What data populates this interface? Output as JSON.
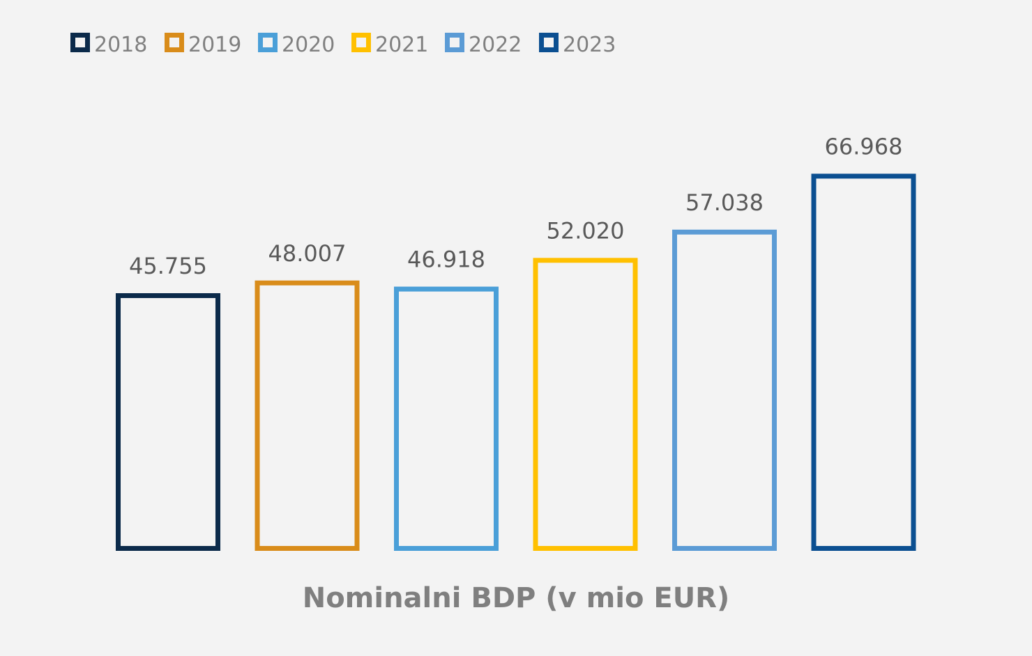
{
  "chart_data": {
    "type": "bar",
    "xlabel": "Nominalni BDP (v mio EUR)",
    "ylabel": "",
    "legend_position": "top-left",
    "grid": false,
    "bar_style": "outline",
    "series": [
      {
        "name": "2018",
        "value": 45755,
        "label": "45.755",
        "color": "#0b2a4a"
      },
      {
        "name": "2019",
        "value": 48007,
        "label": "48.007",
        "color": "#d98c1a"
      },
      {
        "name": "2020",
        "value": 46918,
        "label": "46.918",
        "color": "#4a9fd8"
      },
      {
        "name": "2021",
        "value": 52020,
        "label": "52.020",
        "color": "#ffc000"
      },
      {
        "name": "2022",
        "value": 57038,
        "label": "57.038",
        "color": "#5b9bd5"
      },
      {
        "name": "2023",
        "value": 66968,
        "label": "66.968",
        "color": "#0b4f91"
      }
    ]
  }
}
